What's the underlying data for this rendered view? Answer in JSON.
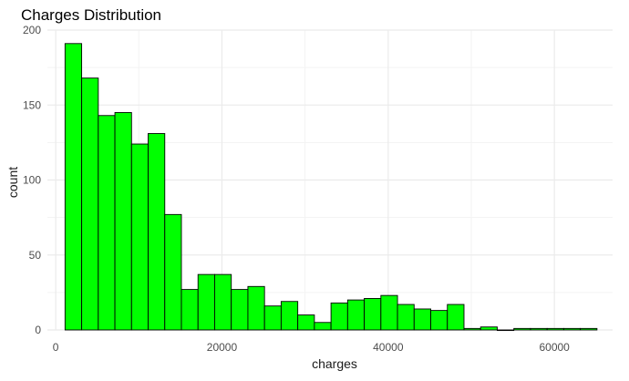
{
  "chart_data": {
    "type": "bar",
    "title": "Charges Distribution",
    "xlabel": "charges",
    "ylabel": "count",
    "xlim": [
      -1000,
      67000
    ],
    "ylim": [
      0,
      200
    ],
    "x_ticks": [
      "0",
      "20000",
      "40000",
      "60000"
    ],
    "y_ticks": [
      "0",
      "50",
      "100",
      "150",
      "200"
    ],
    "grid": true,
    "bin_width": 2000,
    "bins": [
      {
        "x0": 1122,
        "count": 191
      },
      {
        "x0": 3122,
        "count": 168
      },
      {
        "x0": 5122,
        "count": 143
      },
      {
        "x0": 7122,
        "count": 145
      },
      {
        "x0": 9122,
        "count": 124
      },
      {
        "x0": 11122,
        "count": 131
      },
      {
        "x0": 13122,
        "count": 77
      },
      {
        "x0": 15122,
        "count": 27
      },
      {
        "x0": 17122,
        "count": 37
      },
      {
        "x0": 19122,
        "count": 37
      },
      {
        "x0": 21122,
        "count": 27
      },
      {
        "x0": 23122,
        "count": 29
      },
      {
        "x0": 25122,
        "count": 16
      },
      {
        "x0": 27122,
        "count": 19
      },
      {
        "x0": 29122,
        "count": 10
      },
      {
        "x0": 31122,
        "count": 5
      },
      {
        "x0": 33122,
        "count": 18
      },
      {
        "x0": 35122,
        "count": 20
      },
      {
        "x0": 37122,
        "count": 21
      },
      {
        "x0": 39122,
        "count": 23
      },
      {
        "x0": 41122,
        "count": 17
      },
      {
        "x0": 43122,
        "count": 14
      },
      {
        "x0": 45122,
        "count": 13
      },
      {
        "x0": 47122,
        "count": 17
      },
      {
        "x0": 49122,
        "count": 1
      },
      {
        "x0": 51122,
        "count": 2
      },
      {
        "x0": 53122,
        "count": 0
      },
      {
        "x0": 55122,
        "count": 1
      },
      {
        "x0": 57122,
        "count": 1
      },
      {
        "x0": 59122,
        "count": 1
      },
      {
        "x0": 61122,
        "count": 1
      },
      {
        "x0": 63122,
        "count": 1
      }
    ],
    "colors": {
      "bar_fill": "#00ff00",
      "bar_stroke": "#000000",
      "grid_major": "#ebebeb",
      "grid_minor": "#f3f3f3"
    }
  }
}
